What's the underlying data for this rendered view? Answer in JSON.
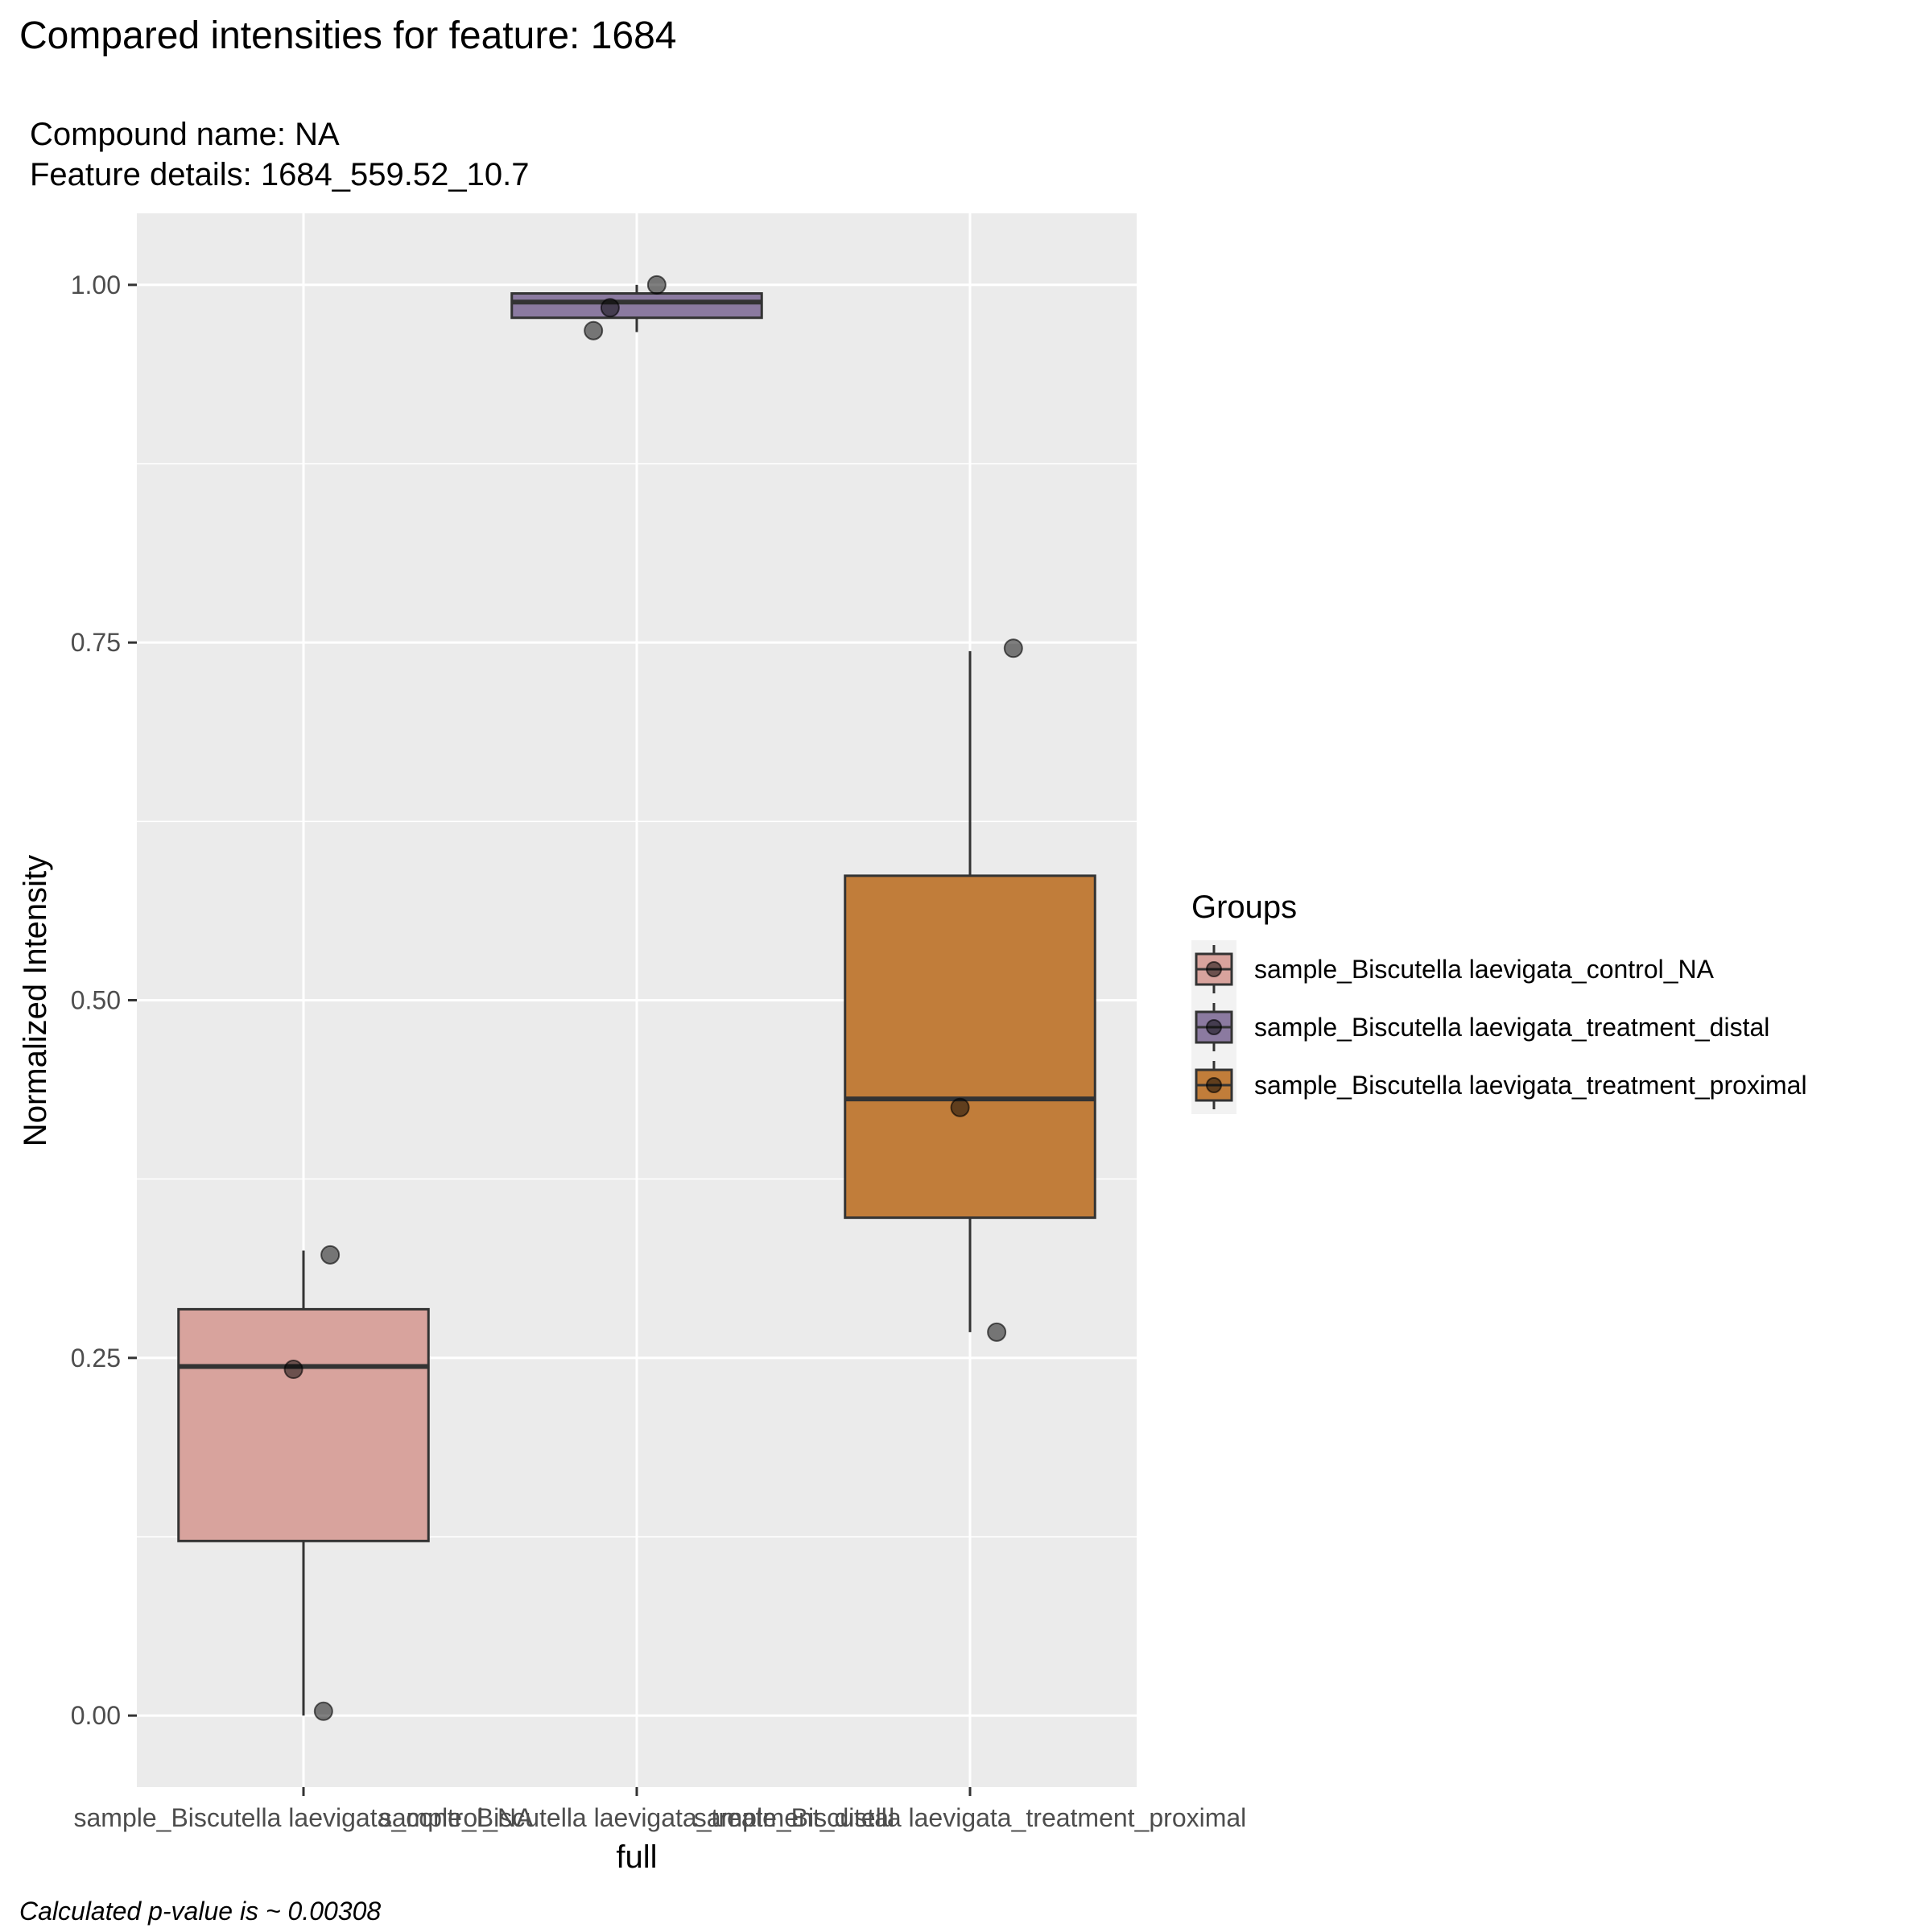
{
  "title": "Compared intensities for feature: 1684",
  "subtitle_line1": "Compound name:  NA",
  "subtitle_line2": "Feature details:  1684_559.52_10.7",
  "caption": "Calculated p-value is ~  0.00308",
  "colors": {
    "panel_bg": "#EBEBEB",
    "grid": "#FFFFFF",
    "point": "#000000",
    "box_outline": "#333333"
  },
  "chart_data": {
    "type": "box",
    "xlabel": "full",
    "ylabel": "Normalized Intensity",
    "ylim": [
      -0.05,
      1.05
    ],
    "y_ticks": [
      0.0,
      0.25,
      0.5,
      0.75,
      1.0
    ],
    "y_tick_labels": [
      "0.00",
      "0.25",
      "0.50",
      "0.75",
      "1.00"
    ],
    "grid": true,
    "legend_position": "right",
    "legend_title": "Groups",
    "categories": [
      "sample_Biscutella laevigata_control_NA",
      "sample_Biscutella laevigata_treatment_distal",
      "sample_Biscutella laevigata_treatment_proximal"
    ],
    "boxes": [
      {
        "name": "sample_Biscutella laevigata_control_NA",
        "color": "#D8A39D",
        "whisker_low": 0.0,
        "q1": 0.122,
        "median": 0.244,
        "q3": 0.284,
        "whisker_high": 0.325,
        "points": [
          0.003,
          0.242,
          0.322
        ]
      },
      {
        "name": "sample_Biscutella laevigata_treatment_distal",
        "color": "#8B7AA0",
        "whisker_low": 0.967,
        "q1": 0.977,
        "median": 0.988,
        "q3": 0.994,
        "whisker_high": 1.0,
        "points": [
          0.968,
          0.984,
          1.0
        ]
      },
      {
        "name": "sample_Biscutella laevigata_treatment_proximal",
        "color": "#C17D3A",
        "whisker_low": 0.268,
        "q1": 0.348,
        "median": 0.431,
        "q3": 0.587,
        "whisker_high": 0.744,
        "points": [
          0.268,
          0.425,
          0.746
        ]
      }
    ]
  }
}
